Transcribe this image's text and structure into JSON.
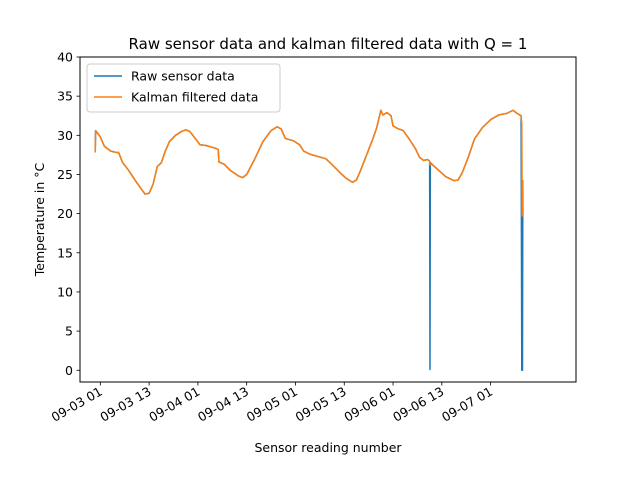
{
  "chart_data": {
    "type": "line",
    "title": "Raw sensor data and kalman filtered data with Q = 1",
    "xlabel": "Sensor reading number",
    "ylabel": "Temperature in °C",
    "ylim": [
      -1.5,
      40
    ],
    "xlim": [
      "2016-09-02 20:00",
      "2016-09-07 22:00"
    ],
    "yticks": [
      0,
      5,
      10,
      15,
      20,
      25,
      30,
      35,
      40
    ],
    "xticks": [
      {
        "t": "2016-09-03 01:00",
        "label": "09-03 01"
      },
      {
        "t": "2016-09-03 13:00",
        "label": "09-03 13"
      },
      {
        "t": "2016-09-04 01:00",
        "label": "09-04 01"
      },
      {
        "t": "2016-09-04 13:00",
        "label": "09-04 13"
      },
      {
        "t": "2016-09-05 01:00",
        "label": "09-05 01"
      },
      {
        "t": "2016-09-05 13:00",
        "label": "09-05 13"
      },
      {
        "t": "2016-09-06 01:00",
        "label": "09-06 01"
      },
      {
        "t": "2016-09-06 13:00",
        "label": "09-06 13"
      },
      {
        "t": "2016-09-07 01:00",
        "label": "09-07 01"
      }
    ],
    "grid": false,
    "legend_position": "top-left",
    "series": [
      {
        "name": "Raw sensor data",
        "color": "#1f77b4",
        "points": [
          [
            "2016-09-02 23:45",
            27.8
          ],
          [
            "2016-09-02 23:50",
            30.6
          ],
          [
            "2016-09-03 01:00",
            29.8
          ],
          [
            "2016-09-03 02:00",
            28.6
          ],
          [
            "2016-09-03 03:30",
            28.0
          ],
          [
            "2016-09-03 05:00",
            27.8
          ],
          [
            "2016-09-03 05:30",
            27.8
          ],
          [
            "2016-09-03 06:30",
            26.5
          ],
          [
            "2016-09-03 08:00",
            25.5
          ],
          [
            "2016-09-03 09:30",
            24.3
          ],
          [
            "2016-09-03 11:00",
            23.2
          ],
          [
            "2016-09-03 12:00",
            22.5
          ],
          [
            "2016-09-03 13:00",
            22.6
          ],
          [
            "2016-09-03 14:00",
            23.8
          ],
          [
            "2016-09-03 15:00",
            26.0
          ],
          [
            "2016-09-03 16:00",
            26.5
          ],
          [
            "2016-09-03 17:00",
            28.0
          ],
          [
            "2016-09-03 18:00",
            29.2
          ],
          [
            "2016-09-03 19:30",
            30.0
          ],
          [
            "2016-09-03 21:00",
            30.5
          ],
          [
            "2016-09-03 22:00",
            30.7
          ],
          [
            "2016-09-03 23:00",
            30.5
          ],
          [
            "2016-09-04 00:30",
            29.5
          ],
          [
            "2016-09-04 01:30",
            28.8
          ],
          [
            "2016-09-04 03:00",
            28.7
          ],
          [
            "2016-09-04 05:00",
            28.4
          ],
          [
            "2016-09-04 06:00",
            28.2
          ],
          [
            "2016-09-04 06:10",
            26.6
          ],
          [
            "2016-09-04 07:30",
            26.3
          ],
          [
            "2016-09-04 09:00",
            25.5
          ],
          [
            "2016-09-04 11:00",
            24.8
          ],
          [
            "2016-09-04 12:00",
            24.6
          ],
          [
            "2016-09-04 13:00",
            25.0
          ],
          [
            "2016-09-04 15:00",
            27.0
          ],
          [
            "2016-09-04 17:00",
            29.2
          ],
          [
            "2016-09-04 19:00",
            30.6
          ],
          [
            "2016-09-04 20:30",
            31.1
          ],
          [
            "2016-09-04 21:30",
            30.8
          ],
          [
            "2016-09-04 22:30",
            29.6
          ],
          [
            "2016-09-05 00:30",
            29.3
          ],
          [
            "2016-09-05 02:00",
            28.8
          ],
          [
            "2016-09-05 03:00",
            28.0
          ],
          [
            "2016-09-05 04:30",
            27.6
          ],
          [
            "2016-09-05 06:30",
            27.3
          ],
          [
            "2016-09-05 08:30",
            27.0
          ],
          [
            "2016-09-05 10:30",
            26.0
          ],
          [
            "2016-09-05 12:00",
            25.2
          ],
          [
            "2016-09-05 13:30",
            24.5
          ],
          [
            "2016-09-05 15:00",
            24.0
          ],
          [
            "2016-09-05 16:00",
            24.3
          ],
          [
            "2016-09-05 17:00",
            25.5
          ],
          [
            "2016-09-05 18:30",
            27.5
          ],
          [
            "2016-09-05 20:00",
            29.5
          ],
          [
            "2016-09-05 21:00",
            31.0
          ],
          [
            "2016-09-05 22:00",
            33.2
          ],
          [
            "2016-09-05 22:30",
            32.6
          ],
          [
            "2016-09-05 23:30",
            32.9
          ],
          [
            "2016-09-06 00:30",
            32.5
          ],
          [
            "2016-09-06 01:00",
            31.2
          ],
          [
            "2016-09-06 02:00",
            30.9
          ],
          [
            "2016-09-06 03:30",
            30.6
          ],
          [
            "2016-09-06 05:00",
            29.5
          ],
          [
            "2016-09-06 06:30",
            28.3
          ],
          [
            "2016-09-06 07:30",
            27.2
          ],
          [
            "2016-09-06 08:30",
            26.8
          ],
          [
            "2016-09-06 09:30",
            26.9
          ],
          [
            "2016-09-06 10:00",
            26.7
          ],
          [
            "2016-09-06 10:05",
            0.1
          ],
          [
            "2016-09-06 10:10",
            26.5
          ],
          [
            "2016-09-06 11:00",
            26.1
          ],
          [
            "2016-09-06 12:30",
            25.4
          ],
          [
            "2016-09-06 14:00",
            24.7
          ],
          [
            "2016-09-06 16:00",
            24.2
          ],
          [
            "2016-09-06 17:00",
            24.3
          ],
          [
            "2016-09-06 18:00",
            25.2
          ],
          [
            "2016-09-06 19:30",
            27.2
          ],
          [
            "2016-09-06 21:00",
            29.5
          ],
          [
            "2016-09-06 23:00",
            31.0
          ],
          [
            "2016-09-07 01:00",
            32.0
          ],
          [
            "2016-09-07 03:00",
            32.6
          ],
          [
            "2016-09-07 05:00",
            32.8
          ],
          [
            "2016-09-07 06:30",
            33.2
          ],
          [
            "2016-09-07 07:30",
            32.8
          ],
          [
            "2016-09-07 08:30",
            32.5
          ],
          [
            "2016-09-07 08:40",
            0.0
          ],
          [
            "2016-09-07 08:45",
            19.5
          ],
          [
            "2016-09-07 08:50",
            0.0
          ],
          [
            "2016-09-07 08:55",
            24.3
          ]
        ]
      },
      {
        "name": "Kalman filtered data",
        "color": "#ff7f0e",
        "points": [
          [
            "2016-09-02 23:45",
            27.8
          ],
          [
            "2016-09-02 23:50",
            30.6
          ],
          [
            "2016-09-03 01:00",
            29.8
          ],
          [
            "2016-09-03 02:00",
            28.6
          ],
          [
            "2016-09-03 03:30",
            28.0
          ],
          [
            "2016-09-03 05:00",
            27.8
          ],
          [
            "2016-09-03 05:30",
            27.8
          ],
          [
            "2016-09-03 06:30",
            26.5
          ],
          [
            "2016-09-03 08:00",
            25.5
          ],
          [
            "2016-09-03 09:30",
            24.3
          ],
          [
            "2016-09-03 11:00",
            23.2
          ],
          [
            "2016-09-03 12:00",
            22.5
          ],
          [
            "2016-09-03 13:00",
            22.6
          ],
          [
            "2016-09-03 14:00",
            23.8
          ],
          [
            "2016-09-03 15:00",
            26.0
          ],
          [
            "2016-09-03 16:00",
            26.5
          ],
          [
            "2016-09-03 17:00",
            28.0
          ],
          [
            "2016-09-03 18:00",
            29.2
          ],
          [
            "2016-09-03 19:30",
            30.0
          ],
          [
            "2016-09-03 21:00",
            30.5
          ],
          [
            "2016-09-03 22:00",
            30.7
          ],
          [
            "2016-09-03 23:00",
            30.5
          ],
          [
            "2016-09-04 00:30",
            29.5
          ],
          [
            "2016-09-04 01:30",
            28.8
          ],
          [
            "2016-09-04 03:00",
            28.7
          ],
          [
            "2016-09-04 05:00",
            28.4
          ],
          [
            "2016-09-04 06:00",
            28.2
          ],
          [
            "2016-09-04 06:10",
            26.6
          ],
          [
            "2016-09-04 07:30",
            26.3
          ],
          [
            "2016-09-04 09:00",
            25.5
          ],
          [
            "2016-09-04 11:00",
            24.8
          ],
          [
            "2016-09-04 12:00",
            24.6
          ],
          [
            "2016-09-04 13:00",
            25.0
          ],
          [
            "2016-09-04 15:00",
            27.0
          ],
          [
            "2016-09-04 17:00",
            29.2
          ],
          [
            "2016-09-04 19:00",
            30.6
          ],
          [
            "2016-09-04 20:30",
            31.1
          ],
          [
            "2016-09-04 21:30",
            30.8
          ],
          [
            "2016-09-04 22:30",
            29.6
          ],
          [
            "2016-09-05 00:30",
            29.3
          ],
          [
            "2016-09-05 02:00",
            28.8
          ],
          [
            "2016-09-05 03:00",
            28.0
          ],
          [
            "2016-09-05 04:30",
            27.6
          ],
          [
            "2016-09-05 06:30",
            27.3
          ],
          [
            "2016-09-05 08:30",
            27.0
          ],
          [
            "2016-09-05 10:30",
            26.0
          ],
          [
            "2016-09-05 12:00",
            25.2
          ],
          [
            "2016-09-05 13:30",
            24.5
          ],
          [
            "2016-09-05 15:00",
            24.0
          ],
          [
            "2016-09-05 16:00",
            24.3
          ],
          [
            "2016-09-05 17:00",
            25.5
          ],
          [
            "2016-09-05 18:30",
            27.5
          ],
          [
            "2016-09-05 20:00",
            29.5
          ],
          [
            "2016-09-05 21:00",
            31.0
          ],
          [
            "2016-09-05 22:00",
            33.2
          ],
          [
            "2016-09-05 22:30",
            32.6
          ],
          [
            "2016-09-05 23:30",
            32.9
          ],
          [
            "2016-09-06 00:30",
            32.5
          ],
          [
            "2016-09-06 01:00",
            31.2
          ],
          [
            "2016-09-06 02:00",
            30.9
          ],
          [
            "2016-09-06 03:30",
            30.6
          ],
          [
            "2016-09-06 05:00",
            29.5
          ],
          [
            "2016-09-06 06:30",
            28.3
          ],
          [
            "2016-09-06 07:30",
            27.2
          ],
          [
            "2016-09-06 08:30",
            26.8
          ],
          [
            "2016-09-06 09:30",
            26.9
          ],
          [
            "2016-09-06 10:00",
            26.7
          ],
          [
            "2016-09-06 10:05",
            26.2
          ],
          [
            "2016-09-06 10:10",
            26.4
          ],
          [
            "2016-09-06 11:00",
            26.1
          ],
          [
            "2016-09-06 12:30",
            25.4
          ],
          [
            "2016-09-06 14:00",
            24.7
          ],
          [
            "2016-09-06 16:00",
            24.2
          ],
          [
            "2016-09-06 17:00",
            24.3
          ],
          [
            "2016-09-06 18:00",
            25.2
          ],
          [
            "2016-09-06 19:30",
            27.2
          ],
          [
            "2016-09-06 21:00",
            29.5
          ],
          [
            "2016-09-06 23:00",
            31.0
          ],
          [
            "2016-09-07 01:00",
            32.0
          ],
          [
            "2016-09-07 03:00",
            32.6
          ],
          [
            "2016-09-07 05:00",
            32.8
          ],
          [
            "2016-09-07 06:30",
            33.2
          ],
          [
            "2016-09-07 07:30",
            32.8
          ],
          [
            "2016-09-07 08:30",
            32.5
          ],
          [
            "2016-09-07 08:40",
            31.5
          ],
          [
            "2016-09-07 08:45",
            19.7
          ],
          [
            "2016-09-07 08:50",
            22.0
          ],
          [
            "2016-09-07 08:55",
            24.3
          ]
        ]
      }
    ]
  }
}
